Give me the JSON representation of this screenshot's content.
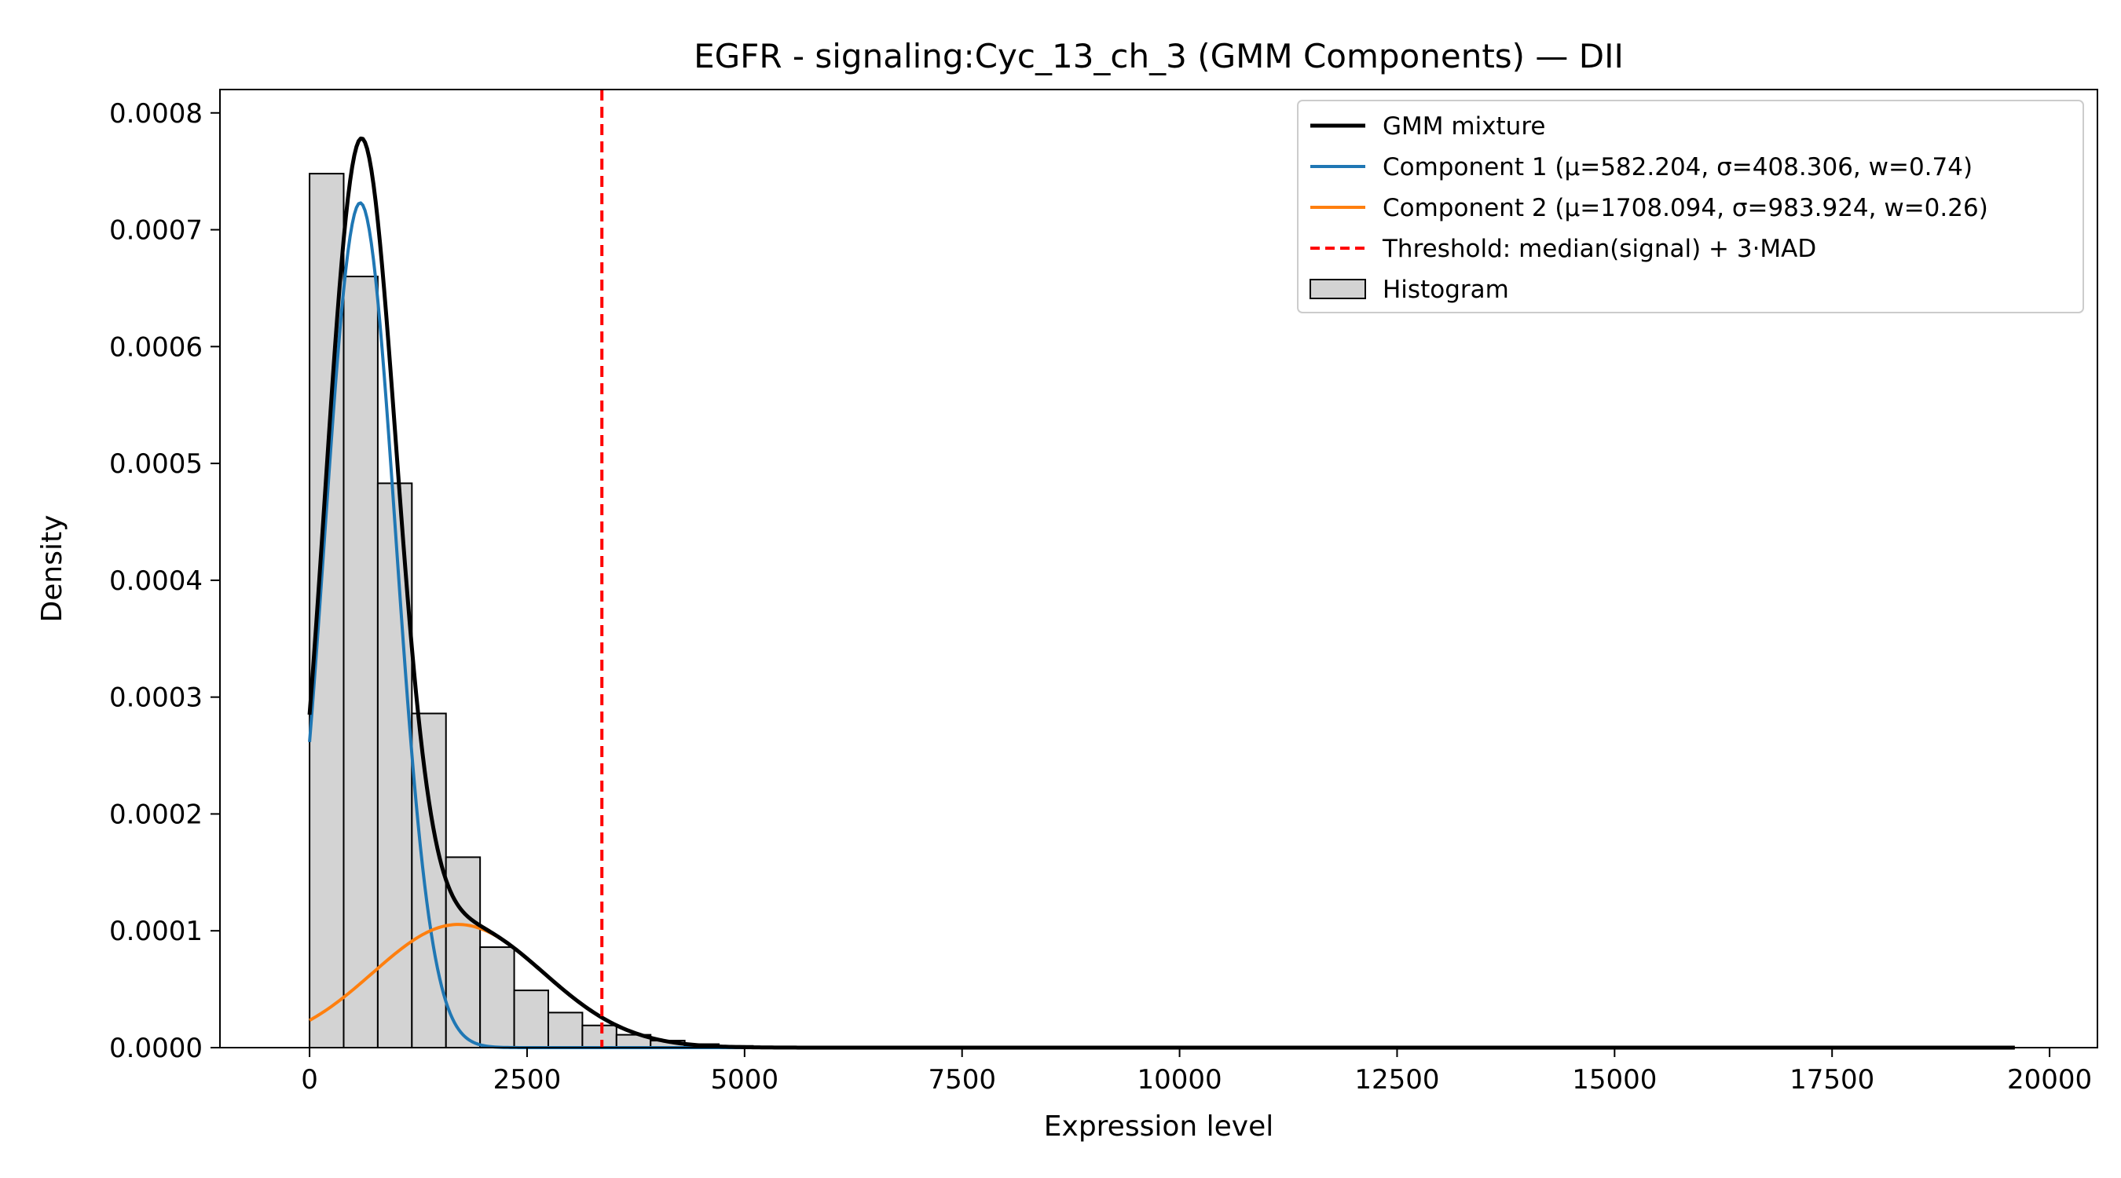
{
  "chart_data": {
    "type": "bar",
    "title": "EGFR - signaling:Cyc_13_ch_3 (GMM Components) — DII",
    "xlabel": "Expression level",
    "ylabel": "Density",
    "xlim": [
      -1030,
      20550
    ],
    "ylim": [
      0,
      0.00082
    ],
    "x_ticks": [
      0,
      2500,
      5000,
      7500,
      10000,
      12500,
      15000,
      17500,
      20000
    ],
    "x_tick_labels": [
      "0",
      "2500",
      "5000",
      "7500",
      "10000",
      "12500",
      "15000",
      "17500",
      "20000"
    ],
    "y_ticks": [
      0,
      0.0001,
      0.0002,
      0.0003,
      0.0004,
      0.0005,
      0.0006,
      0.0007,
      0.0008
    ],
    "y_tick_labels": [
      "0.0000",
      "0.0001",
      "0.0002",
      "0.0003",
      "0.0004",
      "0.0005",
      "0.0006",
      "0.0007",
      "0.0008"
    ],
    "grid": false,
    "legend_position": "top-right",
    "histogram": {
      "name": "Histogram",
      "bin_width": 392,
      "bin_starts": [
        0,
        392,
        784,
        1176,
        1568,
        1960,
        2352,
        2744,
        3136,
        3528,
        3920,
        4312,
        4704,
        5096
      ],
      "densities": [
        0.000748,
        0.00066,
        0.000483,
        0.000286,
        0.000163,
        8.6e-05,
        4.9e-05,
        3e-05,
        1.9e-05,
        1.1e-05,
        6e-06,
        3e-06,
        1.5e-06,
        8e-07
      ],
      "color": "#d3d3d3",
      "edge_color": "#000000"
    },
    "curve_x_range": [
      0,
      19600
    ],
    "series": [
      {
        "name": "GMM mixture",
        "kind": "mixture",
        "color": "#000000"
      },
      {
        "name": "Component 1 (μ=582.204, σ=408.306, w=0.74)",
        "kind": "component",
        "mu": 582.204,
        "sigma": 408.306,
        "weight": 0.74,
        "color": "#1f77b4"
      },
      {
        "name": "Component 2 (μ=1708.094, σ=983.924, w=0.26)",
        "kind": "component",
        "mu": 1708.094,
        "sigma": 983.924,
        "weight": 0.26,
        "color": "#ff7f0e"
      }
    ],
    "threshold": {
      "name": "Threshold: median(signal) + 3·MAD",
      "x": 3360,
      "color": "#ff0000"
    },
    "legend_entries": [
      {
        "label": "GMM mixture",
        "style": "line",
        "color": "#000000"
      },
      {
        "label": "Component 1 (μ=582.204, σ=408.306, w=0.74)",
        "style": "line",
        "color": "#1f77b4"
      },
      {
        "label": "Component 2 (μ=1708.094, σ=983.924, w=0.26)",
        "style": "line",
        "color": "#ff7f0e"
      },
      {
        "label": "Threshold: median(signal) + 3·MAD",
        "style": "dashed",
        "color": "#ff0000"
      },
      {
        "label": "Histogram",
        "style": "patch",
        "color": "#d3d3d3"
      }
    ]
  }
}
